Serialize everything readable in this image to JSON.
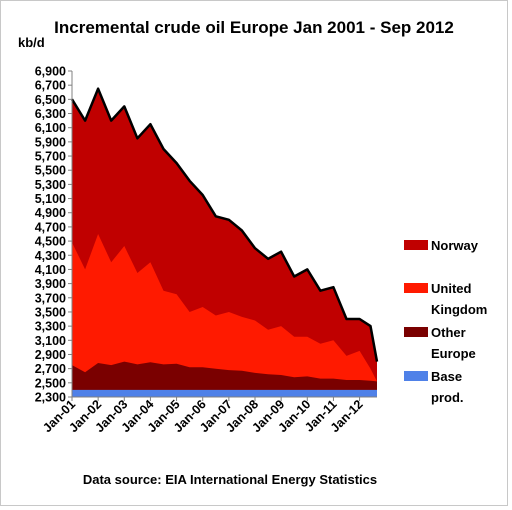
{
  "chart_data": {
    "type": "area",
    "title": "Incremental crude oil Europe  Jan 2001 - Sep 2012",
    "ylabel": "kb/d",
    "xlabel": "",
    "source": "Data source: EIA International Energy Statistics",
    "ylim": [
      2300,
      6900
    ],
    "yticks": [
      2300,
      2500,
      2700,
      2900,
      3100,
      3300,
      3500,
      3700,
      3900,
      4100,
      4300,
      4500,
      4700,
      4900,
      5100,
      5300,
      5500,
      5700,
      5900,
      6100,
      6300,
      6500,
      6700,
      6900
    ],
    "ytick_labels": [
      "2,300",
      "2,500",
      "2,700",
      "2,900",
      "3,100",
      "3,300",
      "3,500",
      "3,700",
      "3,900",
      "4,100",
      "4,300",
      "4,500",
      "4,700",
      "4,900",
      "5,100",
      "5,300",
      "5,500",
      "5,700",
      "5,900",
      "6,100",
      "6,300",
      "6,500",
      "6,700",
      "6,900"
    ],
    "xtick_labels": [
      "Jan-01",
      "Jan-02",
      "Jan-03",
      "Jan-04",
      "Jan-05",
      "Jan-06",
      "Jan-07",
      "Jan-08",
      "Jan-09",
      "Jan-10",
      "Jan-11",
      "Jan-12"
    ],
    "legend_placement": "right",
    "grid": false,
    "stacking": "cumulative levels (top of each band)",
    "x": [
      "2001-01",
      "2001-07",
      "2002-01",
      "2002-07",
      "2003-01",
      "2003-07",
      "2004-01",
      "2004-07",
      "2005-01",
      "2005-07",
      "2006-01",
      "2006-07",
      "2007-01",
      "2007-07",
      "2008-01",
      "2008-07",
      "2009-01",
      "2009-07",
      "2010-01",
      "2010-07",
      "2011-01",
      "2011-07",
      "2012-01",
      "2012-06",
      "2012-09"
    ],
    "series": [
      {
        "name": "Base prod.",
        "color": "#4f81e8",
        "values": [
          2400,
          2400,
          2400,
          2400,
          2400,
          2400,
          2400,
          2400,
          2400,
          2400,
          2400,
          2400,
          2400,
          2400,
          2400,
          2400,
          2400,
          2400,
          2400,
          2400,
          2400,
          2400,
          2400,
          2400,
          2400
        ]
      },
      {
        "name": "Other Europe",
        "color": "#7a0000",
        "values": [
          2750,
          2650,
          2780,
          2750,
          2800,
          2760,
          2790,
          2760,
          2770,
          2720,
          2720,
          2700,
          2680,
          2670,
          2640,
          2620,
          2610,
          2580,
          2590,
          2560,
          2560,
          2540,
          2540,
          2530,
          2520
        ]
      },
      {
        "name": "United Kingdom",
        "color": "#ff1a00",
        "values": [
          4480,
          4100,
          4600,
          4200,
          4430,
          4050,
          4200,
          3800,
          3750,
          3500,
          3570,
          3450,
          3500,
          3430,
          3380,
          3250,
          3300,
          3150,
          3150,
          3050,
          3100,
          2880,
          2950,
          2700,
          2520
        ]
      },
      {
        "name": "Norway",
        "color": "#c00000",
        "values": [
          6500,
          6200,
          6650,
          6200,
          6400,
          5950,
          6150,
          5800,
          5600,
          5350,
          5150,
          4850,
          4800,
          4650,
          4400,
          4250,
          4350,
          4000,
          4100,
          3800,
          3850,
          3400,
          3400,
          3300,
          2800
        ]
      }
    ]
  },
  "legend": [
    {
      "label": "Norway",
      "color": "#c00000"
    },
    {
      "label": "United Kingdom",
      "line1": "United",
      "line2": "Kingdom",
      "color": "#ff1a00"
    },
    {
      "label": "Other Europe",
      "line1": "Other",
      "line2": "Europe",
      "color": "#7a0000"
    },
    {
      "label": "Base prod.",
      "line1": "Base",
      "line2": "prod.",
      "color": "#4f81e8"
    }
  ]
}
